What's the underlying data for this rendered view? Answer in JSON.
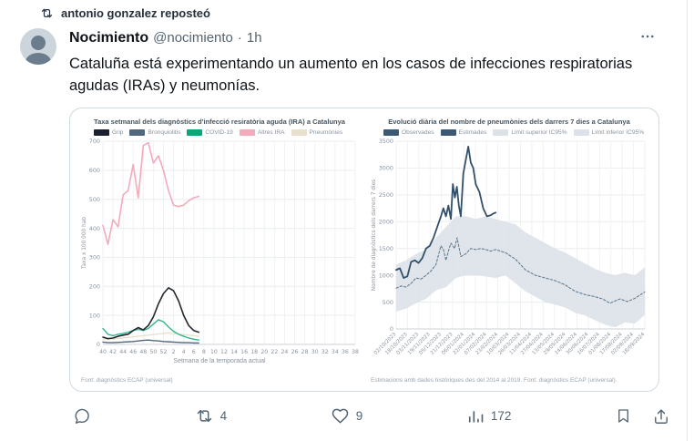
{
  "repost_banner": {
    "text": "antonio gonzalez reposteó"
  },
  "tweet": {
    "author": "Nocimiento",
    "handle": "@nocimiento",
    "dot": "·",
    "time": "1h",
    "body": "Cataluña está experimentando un aumento en los casos de infecciones respiratorias agudas (IRAs) y neumonías."
  },
  "actions": {
    "repost_count": "4",
    "like_count": "9",
    "views_count": "172"
  },
  "colors": {
    "text": "#0f1419",
    "muted": "#536471",
    "border": "#cfd9de"
  },
  "chart_data": [
    {
      "type": "line",
      "title": "Taxa setmanal dels diagnòstics d'infecció resiratòria aguda (IRA) a Catalunya",
      "xlabel": "Setmana de la temporada actual",
      "ylabel": "Taxa x 100 000 hab",
      "footer": "Font: diagnòstics ECAP (universal)",
      "ylim": [
        0,
        700
      ],
      "ytick_step": 100,
      "grid": true,
      "x_ticks": [
        "40",
        "42",
        "44",
        "46",
        "48",
        "50",
        "52",
        "2",
        "4",
        "6",
        "8",
        "10",
        "12",
        "14",
        "16",
        "18",
        "20",
        "22",
        "24",
        "26",
        "28",
        "30",
        "32",
        "34",
        "36",
        "38"
      ],
      "points_per_tick": 2,
      "x_weeks": [
        40,
        41,
        42,
        43,
        44,
        45,
        46,
        47,
        48,
        49,
        50,
        51,
        52,
        1,
        2,
        3,
        4,
        5,
        6,
        7
      ],
      "legend": [
        {
          "label": "Grip",
          "color": "#1b2130"
        },
        {
          "label": "Bronquiolitis",
          "color": "#50677e"
        },
        {
          "label": "COVID-19",
          "color": "#0aa877"
        },
        {
          "label": "Altres IRA",
          "color": "#f3aabb"
        },
        {
          "label": "Pneumònies",
          "color": "#e9e1cd"
        }
      ],
      "series": [
        {
          "name": "Altres IRA",
          "color": "#f3aabb",
          "width": 1.6,
          "values": [
            410,
            345,
            430,
            405,
            515,
            530,
            620,
            505,
            685,
            695,
            625,
            650,
            600,
            530,
            480,
            475,
            480,
            495,
            505,
            510
          ]
        },
        {
          "name": "Pneumònies",
          "color": "#e9e1cd",
          "width": 1.4,
          "values": [
            18,
            18,
            20,
            20,
            22,
            24,
            26,
            28,
            30,
            32,
            34,
            36,
            38,
            40,
            38,
            36,
            34,
            32,
            30,
            28
          ]
        },
        {
          "name": "Bronquiolitis",
          "color": "#50677e",
          "width": 1.4,
          "values": [
            8,
            6,
            6,
            7,
            8,
            9,
            10,
            12,
            14,
            15,
            13,
            12,
            10,
            9,
            8,
            7,
            6,
            6,
            5,
            5
          ]
        },
        {
          "name": "COVID-19",
          "color": "#35b58e",
          "width": 1.4,
          "values": [
            55,
            35,
            30,
            35,
            38,
            42,
            48,
            52,
            48,
            55,
            70,
            85,
            78,
            60,
            45,
            35,
            28,
            22,
            18,
            15
          ]
        },
        {
          "name": "Grip",
          "color": "#23272e",
          "width": 1.6,
          "values": [
            25,
            20,
            22,
            28,
            32,
            35,
            48,
            58,
            50,
            65,
            95,
            140,
            175,
            195,
            185,
            150,
            100,
            65,
            48,
            42
          ]
        }
      ]
    },
    {
      "type": "line",
      "title": "Evolució diària del nombre de pneumònies dels darrers 7 dies a Catalunya",
      "xlabel": "",
      "ylabel": "Nombre de diagnòstics dels darrers 7 dies",
      "footer": "Estimacions amb dades històriques des del 2014 al 2019. Font: diagnòstics ECAP (universal).",
      "ylim": [
        0,
        3500
      ],
      "ytick_step": 500,
      "grid": true,
      "x_tick_rotate": true,
      "x_ticks": [
        "02/10/2023",
        "18/10/2023",
        "03/11/2023",
        "19/11/2023",
        "05/12/2023",
        "21/12/2023",
        "06/01/2024",
        "22/01/2024",
        "07/02/2024",
        "23/02/2024",
        "10/03/2024",
        "26/03/2024",
        "11/04/2024",
        "27/04/2024",
        "13/05/2024",
        "29/05/2024",
        "14/06/2024",
        "30/06/2024",
        "16/07/2024",
        "01/08/2024",
        "17/08/2024",
        "02/09/2024",
        "18/09/2024"
      ],
      "legend": [
        {
          "label": "Observades",
          "color": "#3c5a75"
        },
        {
          "label": "Estimades",
          "color": "#3c5a75"
        },
        {
          "label": "Limit superior IC95%",
          "color": "#dce2e8"
        },
        {
          "label": "Limit inferior IC95%",
          "color": "#dce2e8"
        }
      ],
      "band": {
        "name": "IC95%",
        "color": "#dce2e8",
        "x": [
          0,
          0.04,
          0.08,
          0.12,
          0.16,
          0.2,
          0.24,
          0.28,
          0.32,
          0.36,
          0.4,
          0.44,
          0.48,
          0.52,
          0.56,
          0.6,
          0.64,
          0.68,
          0.72,
          0.76,
          0.8,
          0.84,
          0.88,
          0.92,
          0.96,
          1
        ],
        "upper": [
          1200,
          1280,
          1400,
          1480,
          1700,
          1900,
          2100,
          2100,
          2050,
          2100,
          2050,
          2000,
          1950,
          1800,
          1700,
          1600,
          1500,
          1420,
          1320,
          1220,
          1120,
          1050,
          1000,
          1050,
          1000,
          1150
        ],
        "lower": [
          320,
          380,
          480,
          560,
          720,
          780,
          950,
          1000,
          1000,
          980,
          950,
          1000,
          850,
          700,
          600,
          500,
          450,
          400,
          300,
          250,
          160,
          80,
          30,
          120,
          100,
          260
        ]
      },
      "series": [
        {
          "name": "Estimades",
          "color": "#5b7389",
          "width": 1,
          "dash": "2.5,2",
          "x": [
            0,
            0.02,
            0.04,
            0.06,
            0.08,
            0.1,
            0.12,
            0.14,
            0.16,
            0.18,
            0.19,
            0.2,
            0.21,
            0.22,
            0.235,
            0.245,
            0.26,
            0.28,
            0.3,
            0.32,
            0.34,
            0.36,
            0.38,
            0.4,
            0.44,
            0.48,
            0.52,
            0.56,
            0.6,
            0.64,
            0.68,
            0.72,
            0.76,
            0.8,
            0.83,
            0.86,
            0.88,
            0.9,
            0.93,
            0.96,
            1
          ],
          "values": [
            760,
            800,
            780,
            850,
            950,
            930,
            1000,
            1080,
            1200,
            1550,
            1480,
            1280,
            1450,
            1600,
            1500,
            1700,
            1350,
            1400,
            1500,
            1480,
            1500,
            1480,
            1450,
            1480,
            1420,
            1300,
            1100,
            1000,
            950,
            900,
            820,
            700,
            640,
            600,
            560,
            480,
            520,
            560,
            510,
            570,
            690
          ]
        },
        {
          "name": "Observades",
          "color": "#33506b",
          "width": 1.8,
          "x": [
            0,
            0.015,
            0.03,
            0.045,
            0.06,
            0.075,
            0.09,
            0.105,
            0.12,
            0.135,
            0.15,
            0.165,
            0.18,
            0.19,
            0.2,
            0.21,
            0.22,
            0.228,
            0.236,
            0.244,
            0.252,
            0.26,
            0.27,
            0.28,
            0.29,
            0.3,
            0.31,
            0.32,
            0.335,
            0.35,
            0.365,
            0.38,
            0.39,
            0.4
          ],
          "values": [
            1100,
            1130,
            950,
            980,
            1250,
            1280,
            1230,
            1320,
            1500,
            1550,
            1700,
            1900,
            2100,
            2250,
            2100,
            2300,
            2050,
            2700,
            2450,
            2650,
            2300,
            2100,
            2900,
            3150,
            3400,
            3100,
            3000,
            2700,
            2550,
            2250,
            2100,
            2120,
            2150,
            2170
          ]
        }
      ]
    }
  ]
}
